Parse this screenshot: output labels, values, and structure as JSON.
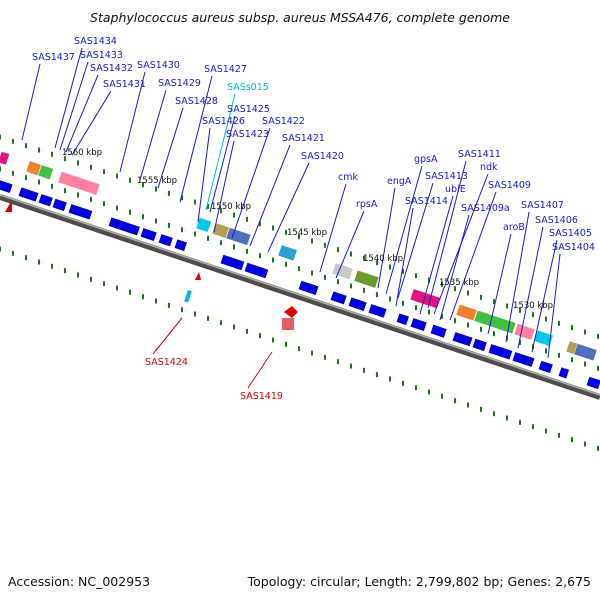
{
  "title": "Staphylococcus aureus subsp. aureus MSSA476, complete genome",
  "accession": "Accession: NC_002953",
  "topology": "Topology: circular; Length: 2,799,802 bp; Genes: 2,675",
  "colors": {
    "gene": "#0000dd",
    "rna": "#00b8d8",
    "misc": "#dd0000",
    "leader": "#1a1acc",
    "tick": "#1a7a1a",
    "backbone": "#777777"
  },
  "kbp_labels": [
    "1560 kbp",
    "1555 kbp",
    "1550 kbp",
    "1545 kbp",
    "1540 kbp",
    "1535 kbp",
    "1530 kbp"
  ],
  "gene_labels": [
    {
      "text": "SAS1437",
      "kind": "gene"
    },
    {
      "text": "SAS1434",
      "kind": "gene"
    },
    {
      "text": "SAS1433",
      "kind": "gene"
    },
    {
      "text": "SAS1432",
      "kind": "gene"
    },
    {
      "text": "SAS1431",
      "kind": "gene"
    },
    {
      "text": "SAS1430",
      "kind": "gene"
    },
    {
      "text": "SAS1429",
      "kind": "gene"
    },
    {
      "text": "SAS1428",
      "kind": "gene"
    },
    {
      "text": "SAS1427",
      "kind": "gene"
    },
    {
      "text": "SASs015",
      "kind": "rna"
    },
    {
      "text": "SAS1425",
      "kind": "gene"
    },
    {
      "text": "SAS1426",
      "kind": "gene"
    },
    {
      "text": "SAS1423",
      "kind": "gene"
    },
    {
      "text": "SAS1422",
      "kind": "gene"
    },
    {
      "text": "SAS1421",
      "kind": "gene"
    },
    {
      "text": "SAS1420",
      "kind": "gene"
    },
    {
      "text": "cmk",
      "kind": "gene"
    },
    {
      "text": "rpsA",
      "kind": "gene"
    },
    {
      "text": "engA",
      "kind": "gene"
    },
    {
      "text": "gpsA",
      "kind": "gene"
    },
    {
      "text": "SAS1413",
      "kind": "gene"
    },
    {
      "text": "SAS1414",
      "kind": "gene"
    },
    {
      "text": "SAS1411",
      "kind": "gene"
    },
    {
      "text": "ndk",
      "kind": "gene"
    },
    {
      "text": "ubiE",
      "kind": "gene"
    },
    {
      "text": "SAS1409",
      "kind": "gene"
    },
    {
      "text": "SAS1409a",
      "kind": "gene"
    },
    {
      "text": "aroB",
      "kind": "gene"
    },
    {
      "text": "SAS1407",
      "kind": "gene"
    },
    {
      "text": "SAS1406",
      "kind": "gene"
    },
    {
      "text": "SAS1405",
      "kind": "gene"
    },
    {
      "text": "SAS1404",
      "kind": "gene"
    },
    {
      "text": "SAS1424",
      "kind": "misc"
    },
    {
      "text": "SAS1419",
      "kind": "misc"
    }
  ]
}
